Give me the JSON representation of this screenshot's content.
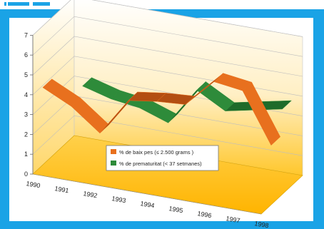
{
  "chart_data": {
    "type": "line",
    "title": "",
    "xlabel": "",
    "ylabel": "",
    "categories": [
      "1990",
      "1991",
      "1992",
      "1993",
      "1994",
      "1995",
      "1996",
      "1997",
      "1998"
    ],
    "ylim": [
      0,
      7
    ],
    "yticks": [
      "0",
      "1",
      "2",
      "3",
      "4",
      "5",
      "6",
      "7"
    ],
    "grid": true,
    "legend_position": "center",
    "series": [
      {
        "name": "% de baix pes (≤ 2.500 grams )",
        "color": "#e8701e",
        "values": [
          3.9,
          3.2,
          2.1,
          4.0,
          4.2,
          4.3,
          5.7,
          5.5,
          3.0
        ]
      },
      {
        "name": "% de prematuritat (< 37 setmanes)",
        "color": "#2e8b3a",
        "values": [
          null,
          3.7,
          3.3,
          3.1,
          2.6,
          4.5,
          3.7,
          4.0,
          4.3
        ]
      }
    ]
  },
  "colors": {
    "frame": "#1aa3e6",
    "wall_top": "#ffffff",
    "wall_bottom": "#ffc72c",
    "floor": "#ffbf00"
  }
}
